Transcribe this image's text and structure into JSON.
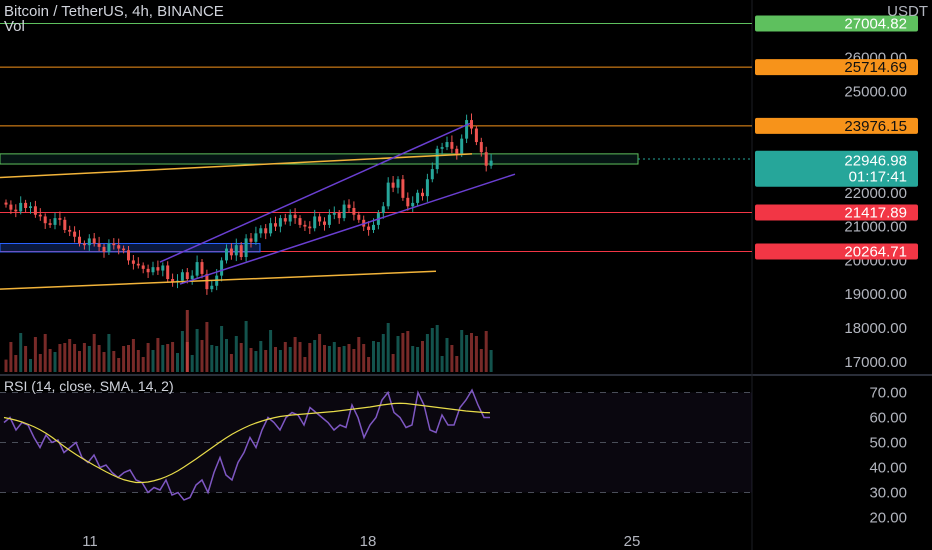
{
  "header": {
    "symbol_title": "Bitcoin / TetherUS, 4h, BINANCE",
    "vol_label": "Vol",
    "currency": "USDT"
  },
  "colors": {
    "background": "#000000",
    "up": "#26a69a",
    "down": "#ef5350",
    "channel": "#6a3fd1",
    "trendline": "#f2b43a",
    "rsi_line": "#7e57c2",
    "rsi_sma": "#e8dc4a",
    "level_green": "#5ec05e",
    "level_orange": "#f7931a",
    "level_red": "#f23645",
    "current_price": "#26a69a"
  },
  "chart_data": {
    "type": "candlestick",
    "title": "Bitcoin / TetherUS, 4h, BINANCE",
    "ylim": [
      16700,
      27700
    ],
    "y_ticks": [
      "26000.00",
      "25000.00",
      "22000.00",
      "21000.00",
      "20000.00",
      "19000.00",
      "18000.00",
      "17000.00"
    ],
    "x_ticks": [
      "11",
      "18",
      "25"
    ],
    "price_labels": [
      {
        "value": 27004.82,
        "text": "27004.82",
        "color": "#5ec05e"
      },
      {
        "value": 25714.69,
        "text": "25714.69",
        "color": "#f7931a"
      },
      {
        "value": 23976.15,
        "text": "23976.15",
        "color": "#f7931a"
      },
      {
        "value": 21417.89,
        "text": "21417.89",
        "color": "#f23645"
      },
      {
        "value": 20264.71,
        "text": "20264.71",
        "color": "#f23645"
      }
    ],
    "current_price": {
      "value": 22946.98,
      "text": "22946.98",
      "countdown": "01:17:41"
    },
    "closes": [
      21650,
      21500,
      21450,
      21700,
      21550,
      21600,
      21350,
      21300,
      21100,
      21050,
      21250,
      21200,
      20900,
      20850,
      20700,
      20500,
      20450,
      20650,
      20500,
      20400,
      20250,
      20500,
      20450,
      20350,
      20300,
      20000,
      19900,
      19850,
      19750,
      19650,
      19800,
      19700,
      19850,
      19450,
      19350,
      19400,
      19650,
      19450,
      19550,
      19950,
      19600,
      19150,
      19250,
      19550,
      20000,
      20350,
      20150,
      20450,
      20100,
      20650,
      20550,
      20800,
      20950,
      20800,
      21100,
      21000,
      21250,
      21150,
      21350,
      21250,
      21050,
      21000,
      20950,
      21300,
      21150,
      21050,
      21350,
      21400,
      21250,
      21650,
      21550,
      21350,
      21200,
      21000,
      20900,
      21050,
      21400,
      21600,
      22300,
      22150,
      22400,
      21850,
      21600,
      21700,
      22000,
      21900,
      22400,
      22700,
      23300,
      23350,
      23500,
      23300,
      23150,
      23600,
      24150,
      23900,
      23500,
      23200,
      22800,
      22950
    ],
    "rsi": {
      "label": "RSI (14, close, SMA, 14, 2)",
      "ylim": [
        15,
        75
      ],
      "y_ticks": [
        "70.00",
        "60.00",
        "50.00",
        "40.00",
        "30.00",
        "20.00"
      ],
      "upper_band": 70,
      "lower_band": 30,
      "values": [
        58,
        60,
        55,
        58,
        57,
        52,
        48,
        53,
        50,
        51,
        46,
        48,
        50,
        44,
        42,
        45,
        40,
        41,
        38,
        36,
        38,
        39,
        35,
        34,
        30,
        32,
        31,
        35,
        29,
        30,
        27,
        28,
        33,
        35,
        30,
        38,
        44,
        37,
        35,
        42,
        46,
        52,
        48,
        55,
        60,
        58,
        55,
        60,
        62,
        61,
        57,
        64,
        62,
        60,
        58,
        55,
        57,
        56,
        65,
        60,
        52,
        57,
        60,
        67,
        70,
        62,
        60,
        56,
        57,
        70,
        65,
        55,
        54,
        61,
        57,
        57,
        64,
        67,
        71,
        65,
        60,
        60
      ],
      "sma": [
        60,
        59.5,
        58.9,
        58.2,
        57.3,
        56.3,
        55.1,
        53.7,
        52.1,
        50.3,
        48.5,
        46.8,
        45.2,
        43.7,
        42.3,
        40.9,
        39.6,
        38.3,
        37.1,
        36,
        35.1,
        34.5,
        34,
        34,
        34.2,
        34.7,
        35.4,
        36.3,
        37.4,
        38.7,
        40.2,
        41.8,
        43.4,
        45.1,
        46.8,
        48.5,
        50.2,
        51.8,
        53.3,
        54.6,
        55.8,
        56.9,
        57.8,
        58.6,
        59.3,
        59.9,
        60.4,
        60.7,
        61,
        61.2,
        61.4,
        61.6,
        61.8,
        62,
        62.2,
        62.4,
        62.7,
        63,
        63.3,
        63.6,
        63.9,
        64.2,
        64.6,
        65,
        65.3,
        65.6,
        65.7,
        65.6,
        65.3,
        65,
        64.7,
        64.4,
        64.1,
        63.8,
        63.5,
        63.2,
        62.9,
        62.6,
        62.4,
        62.2,
        62,
        61.9
      ]
    }
  }
}
